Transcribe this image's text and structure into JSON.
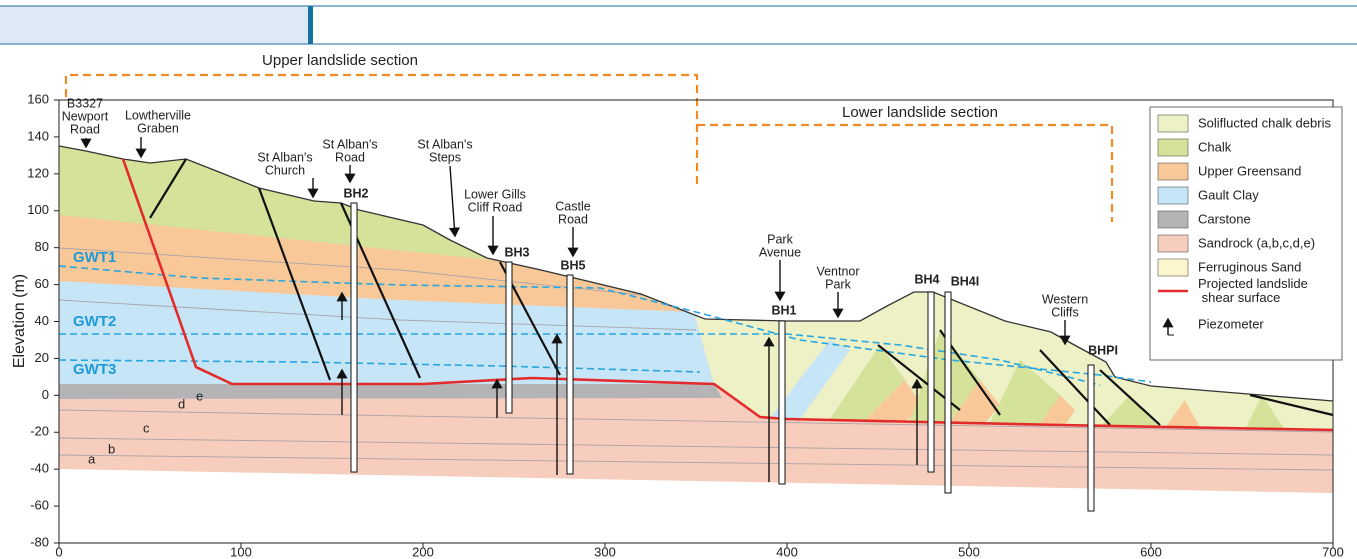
{
  "sections": {
    "upper": "Upper landslide section",
    "lower": "Lower landslide section"
  },
  "axes": {
    "ylabel": "Elevation (m)",
    "xlim": [
      0,
      700
    ],
    "ylim": [
      -80,
      160
    ],
    "xticks": [
      0,
      100,
      200,
      300,
      400,
      500,
      600,
      700
    ],
    "yticks": [
      -80,
      -60,
      -40,
      -20,
      0,
      20,
      40,
      60,
      80,
      100,
      120,
      140,
      160
    ]
  },
  "places": [
    [
      "B3327",
      "Newport",
      "Road"
    ],
    [
      "Lowtherville",
      "Graben"
    ],
    [
      "St Alban's",
      "Church"
    ],
    [
      "St Alban's",
      "Road"
    ],
    [
      "St Alban's",
      "Steps"
    ],
    [
      "Lower Gills",
      "Cliff Road"
    ],
    [
      "Castle",
      "Road"
    ],
    [
      "Park",
      "Avenue"
    ],
    [
      "Ventnor",
      "Park"
    ],
    [
      "Western",
      "Cliffs"
    ]
  ],
  "boreholes": [
    "BH2",
    "BH3",
    "BH5",
    "BH1",
    "BH4",
    "BH4I",
    "BHPI"
  ],
  "water_tables": [
    "GWT1",
    "GWT2",
    "GWT3"
  ],
  "sandrock_units": [
    "a",
    "b",
    "c",
    "d",
    "e"
  ],
  "legend": [
    {
      "label": "Soliflucted chalk debris",
      "color": "#eef0c6"
    },
    {
      "label": "Chalk",
      "color": "#d4e29a"
    },
    {
      "label": "Upper Greensand",
      "color": "#f8c898"
    },
    {
      "label": "Gault Clay",
      "color": "#c6e5f6"
    },
    {
      "label": "Carstone",
      "color": "#b4b4b6"
    },
    {
      "label": "Sandrock (a,b,c,d,e)",
      "color": "#f7cdbd"
    },
    {
      "label": "Ferruginous Sand",
      "color": "#fdf6cc"
    },
    {
      "label": "Projected landslide shear surface",
      "color": "#e42b2b"
    },
    {
      "label": "Piezometer"
    }
  ]
}
